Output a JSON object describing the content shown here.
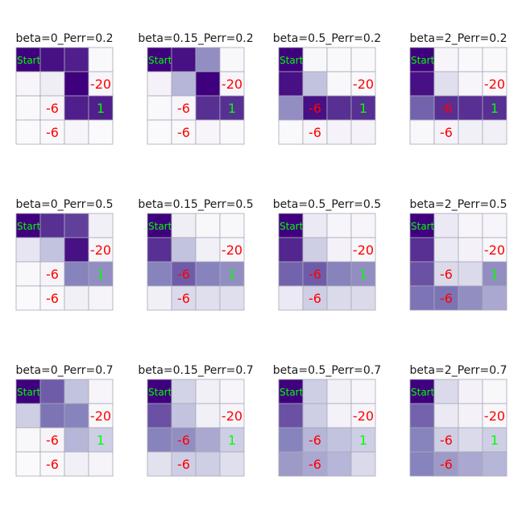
{
  "chart_data": {
    "type": "heatmap",
    "grid_rows": 4,
    "grid_cols": 4,
    "colormap": "Purples",
    "color_range": [
      0,
      1
    ],
    "start_label": "Start",
    "cell_labels": [
      {
        "row": 1,
        "col": 3,
        "text": "-20",
        "color": "#ff0000"
      },
      {
        "row": 2,
        "col": 1,
        "text": "-6",
        "color": "#ff0000"
      },
      {
        "row": 2,
        "col": 3,
        "text": "1",
        "color": "#00ff00"
      },
      {
        "row": 3,
        "col": 1,
        "text": "-6",
        "color": "#ff0000"
      }
    ],
    "start_color": "#00ff00",
    "panels": [
      {
        "title": "beta=0_Perr=0.2",
        "values": [
          [
            1.0,
            0.95,
            0.9,
            0.03
          ],
          [
            0.05,
            0.12,
            1.0,
            0.05
          ],
          [
            0.03,
            0.05,
            0.9,
            0.9
          ],
          [
            0.02,
            0.03,
            0.05,
            0.02
          ]
        ]
      },
      {
        "title": "beta=0.15_Perr=0.2",
        "values": [
          [
            1.0,
            0.95,
            0.55,
            0.04
          ],
          [
            0.08,
            0.4,
            1.0,
            0.05
          ],
          [
            0.03,
            0.05,
            0.85,
            0.85
          ],
          [
            0.02,
            0.03,
            0.05,
            0.03
          ]
        ]
      },
      {
        "title": "beta=0.5_Perr=0.2",
        "values": [
          [
            1.0,
            0.04,
            0.03,
            0.03
          ],
          [
            0.95,
            0.35,
            0.04,
            0.03
          ],
          [
            0.55,
            0.95,
            0.85,
            0.85
          ],
          [
            0.03,
            0.05,
            0.07,
            0.07
          ]
        ]
      },
      {
        "title": "beta=2_Perr=0.2",
        "values": [
          [
            1.0,
            0.05,
            0.03,
            0.03
          ],
          [
            0.95,
            0.22,
            0.05,
            0.03
          ],
          [
            0.7,
            0.85,
            0.85,
            0.85
          ],
          [
            0.04,
            0.07,
            0.1,
            0.1
          ]
        ]
      },
      {
        "title": "beta=0_Perr=0.5",
        "values": [
          [
            1.0,
            0.85,
            0.8,
            0.1
          ],
          [
            0.18,
            0.35,
            0.95,
            0.05
          ],
          [
            0.04,
            0.06,
            0.6,
            0.55
          ],
          [
            0.02,
            0.03,
            0.1,
            0.06
          ]
        ]
      },
      {
        "title": "beta=0.15_Perr=0.5",
        "values": [
          [
            1.0,
            0.12,
            0.04,
            0.04
          ],
          [
            0.85,
            0.35,
            0.1,
            0.04
          ],
          [
            0.6,
            0.72,
            0.6,
            0.55
          ],
          [
            0.1,
            0.25,
            0.22,
            0.22
          ]
        ]
      },
      {
        "title": "beta=0.5_Perr=0.5",
        "values": [
          [
            1.0,
            0.15,
            0.05,
            0.05
          ],
          [
            0.88,
            0.3,
            0.08,
            0.04
          ],
          [
            0.7,
            0.72,
            0.6,
            0.55
          ],
          [
            0.15,
            0.3,
            0.25,
            0.25
          ]
        ]
      },
      {
        "title": "beta=2_Perr=0.5",
        "values": [
          [
            1.0,
            0.15,
            0.05,
            0.05
          ],
          [
            0.85,
            0.15,
            0.08,
            0.04
          ],
          [
            0.75,
            0.25,
            0.25,
            0.55
          ],
          [
            0.65,
            0.65,
            0.55,
            0.45
          ]
        ]
      },
      {
        "title": "beta=0_Perr=0.7",
        "values": [
          [
            1.0,
            0.72,
            0.35,
            0.05
          ],
          [
            0.3,
            0.65,
            0.6,
            0.04
          ],
          [
            0.04,
            0.06,
            0.4,
            0.3
          ],
          [
            0.02,
            0.03,
            0.1,
            0.06
          ]
        ]
      },
      {
        "title": "beta=0.15_Perr=0.7",
        "values": [
          [
            1.0,
            0.28,
            0.1,
            0.05
          ],
          [
            0.75,
            0.35,
            0.1,
            0.05
          ],
          [
            0.6,
            0.55,
            0.45,
            0.3
          ],
          [
            0.2,
            0.3,
            0.3,
            0.22
          ]
        ]
      },
      {
        "title": "beta=0.5_Perr=0.7",
        "values": [
          [
            1.0,
            0.3,
            0.1,
            0.05
          ],
          [
            0.75,
            0.3,
            0.08,
            0.05
          ],
          [
            0.6,
            0.4,
            0.35,
            0.3
          ],
          [
            0.5,
            0.45,
            0.4,
            0.25
          ]
        ]
      },
      {
        "title": "beta=2_Perr=0.7",
        "values": [
          [
            1.0,
            0.25,
            0.08,
            0.04
          ],
          [
            0.7,
            0.15,
            0.08,
            0.04
          ],
          [
            0.6,
            0.3,
            0.25,
            0.3
          ],
          [
            0.6,
            0.5,
            0.45,
            0.4
          ]
        ]
      }
    ]
  }
}
